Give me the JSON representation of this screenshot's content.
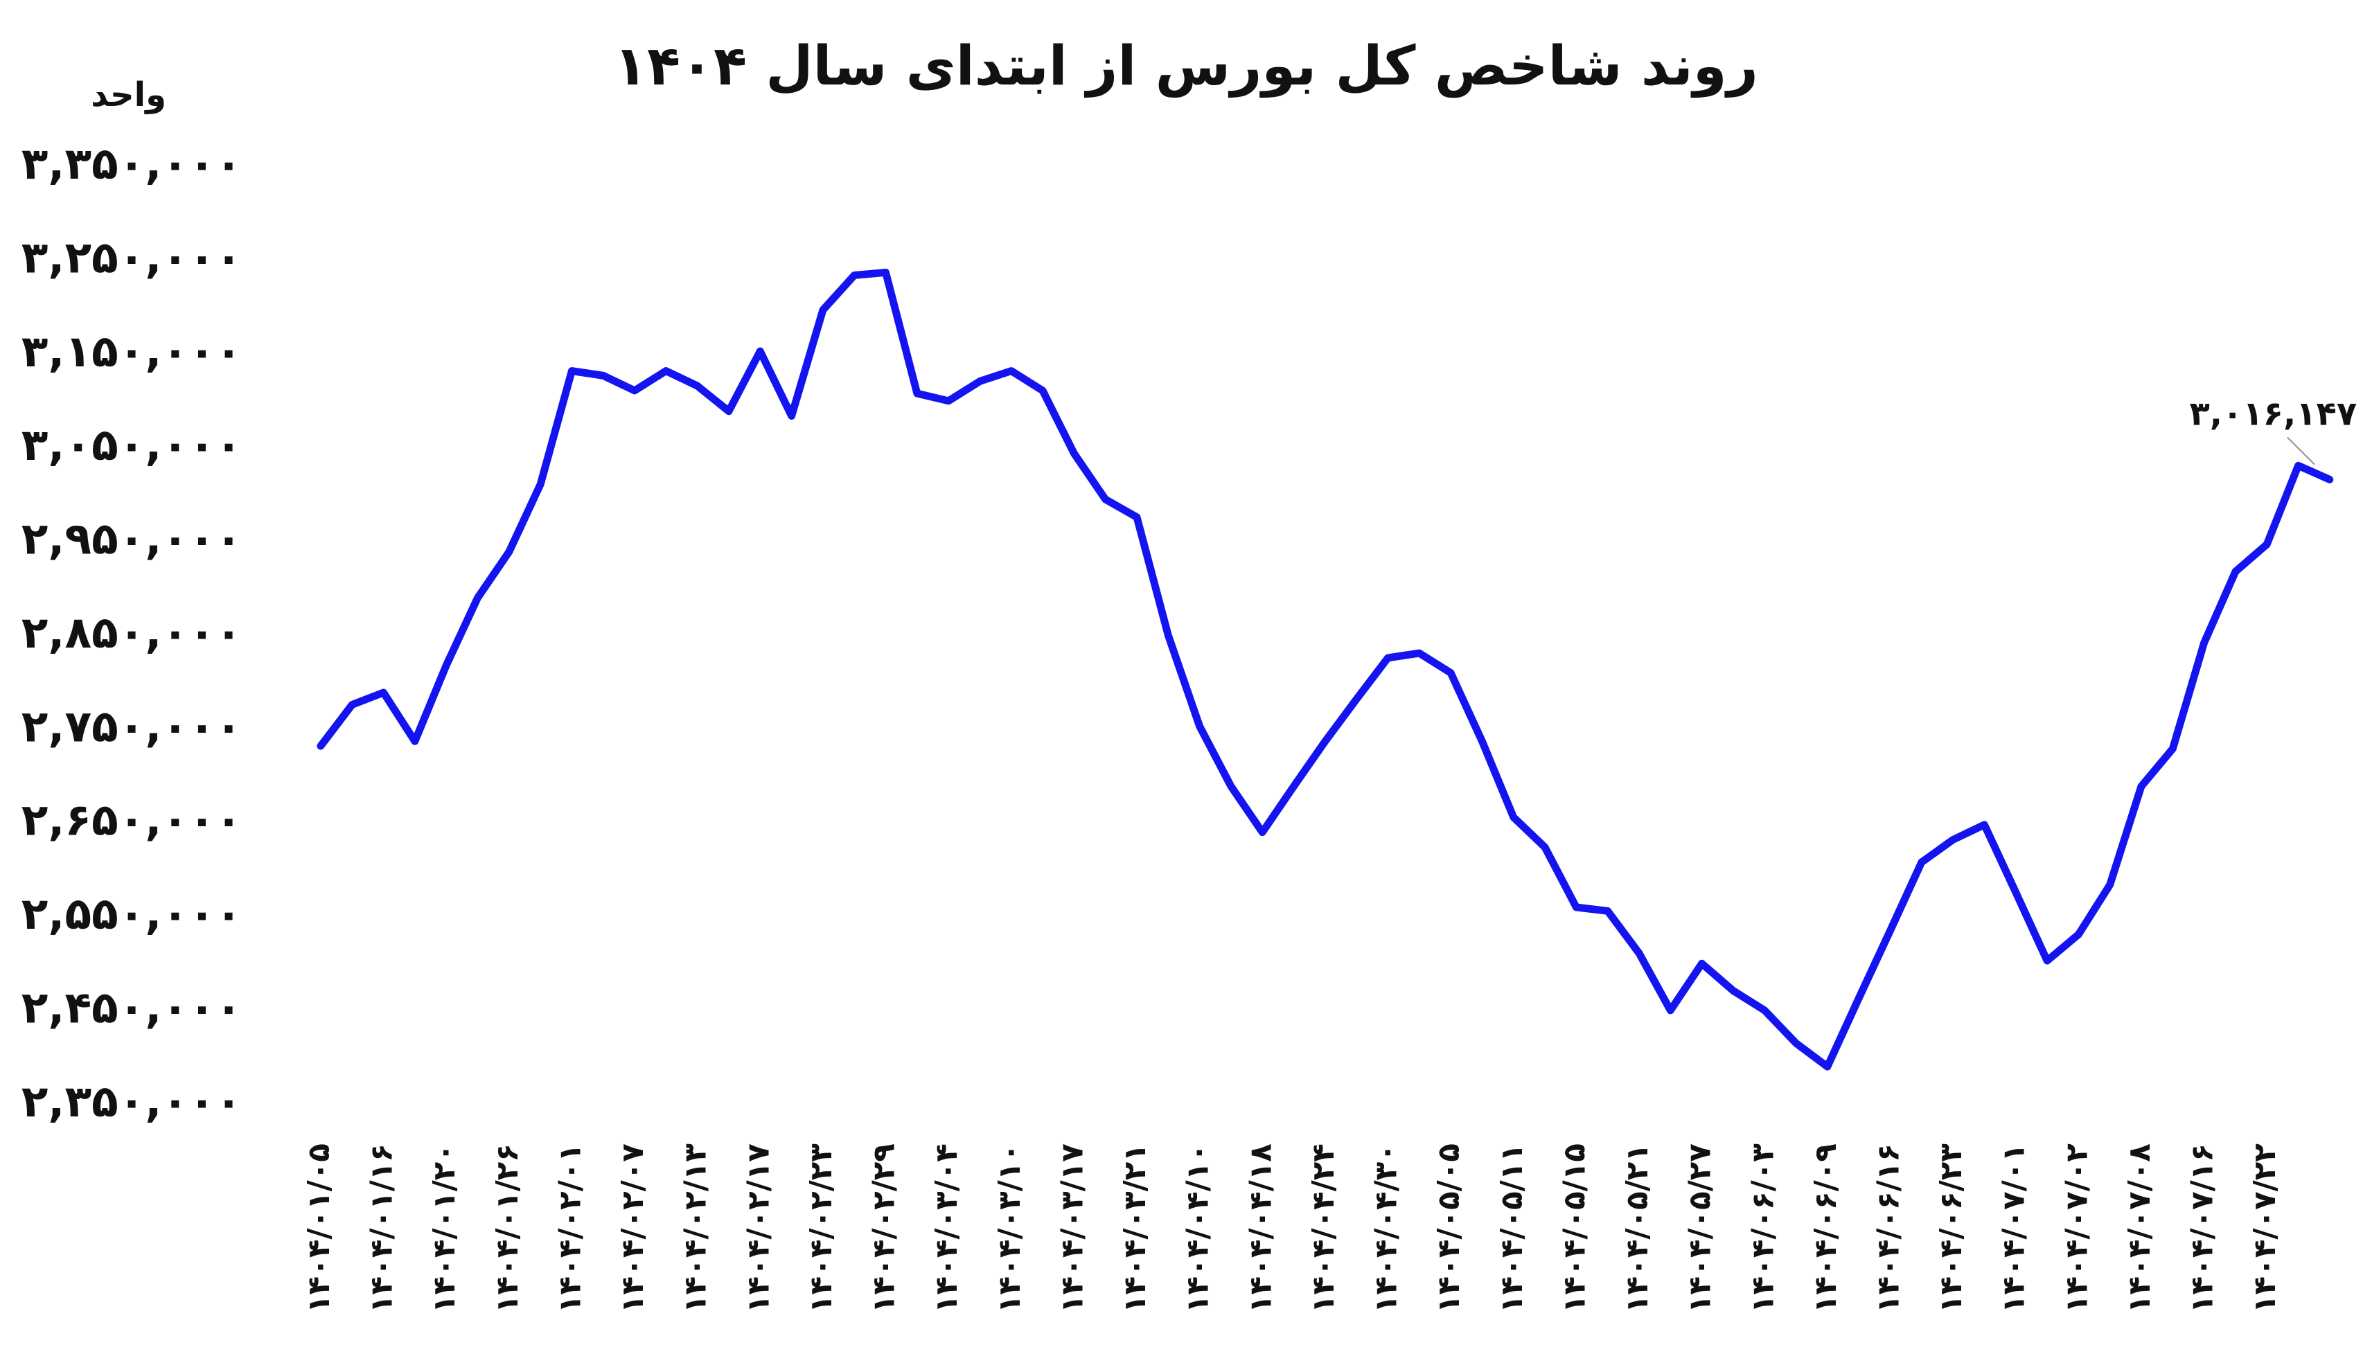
{
  "chart_data": {
    "type": "line",
    "title": "روند شاخص کل بورس از ابتدای سال ۱۴۰۴",
    "y_label": "واحد",
    "categories": [
      "۱۴۰۴/۰۱/۰۵",
      null,
      "۱۴۰۴/۰۱/۱۶",
      null,
      "۱۴۰۴/۰۱/۲۰",
      null,
      "۱۴۰۴/۰۱/۲۶",
      null,
      "۱۴۰۴/۰۲/۰۱",
      null,
      "۱۴۰۴/۰۲/۰۷",
      null,
      "۱۴۰۴/۰۲/۱۳",
      null,
      "۱۴۰۴/۰۲/۱۷",
      null,
      "۱۴۰۴/۰۲/۲۳",
      null,
      "۱۴۰۴/۰۲/۲۹",
      null,
      "۱۴۰۴/۰۳/۰۴",
      null,
      "۱۴۰۴/۰۳/۱۰",
      null,
      "۱۴۰۴/۰۳/۱۷",
      null,
      "۱۴۰۴/۰۳/۲۱",
      null,
      "۱۴۰۴/۰۴/۱۰",
      null,
      "۱۴۰۴/۰۴/۱۸",
      null,
      "۱۴۰۴/۰۴/۲۴",
      null,
      "۱۴۰۴/۰۴/۳۰",
      null,
      "۱۴۰۴/۰۵/۰۵",
      null,
      "۱۴۰۴/۰۵/۱۱",
      null,
      "۱۴۰۴/۰۵/۱۵",
      null,
      "۱۴۰۴/۰۵/۲۱",
      null,
      "۱۴۰۴/۰۵/۲۷",
      null,
      "۱۴۰۴/۰۶/۰۳",
      null,
      "۱۴۰۴/۰۶/۰۹",
      null,
      "۱۴۰۴/۰۶/۱۶",
      null,
      "۱۴۰۴/۰۶/۲۳",
      null,
      "۱۴۰۴/۰۷/۰۱",
      null,
      "۱۴۰۴/۰۷/۰۲",
      null,
      "۱۴۰۴/۰۷/۰۸",
      null,
      "۱۴۰۴/۰۷/۱۶",
      null,
      "۱۴۰۴/۰۷/۲۲",
      null,
      null
    ],
    "series": [
      {
        "color": "#1414f0",
        "values": [
          2732000,
          2776000,
          2789000,
          2737000,
          2818000,
          2890000,
          2939000,
          3011000,
          3132000,
          3127000,
          3111000,
          3132000,
          3116000,
          3089000,
          3153000,
          3084000,
          3197000,
          3234000,
          3237000,
          3108000,
          3100000,
          3121000,
          3132000,
          3111000,
          3044000,
          2995000,
          2976000,
          2850000,
          2753000,
          2689000,
          2640000,
          2689000,
          2737000,
          2782000,
          2826000,
          2831000,
          2810000,
          2737000,
          2656000,
          2624000,
          2560000,
          2556000,
          2511000,
          2450000,
          2500000,
          2471000,
          2450000,
          2415000,
          2390000,
          2463000,
          2535000,
          2608000,
          2632000,
          2648000,
          2576000,
          2503000,
          2531000,
          2584000,
          2689000,
          2729000,
          2842000,
          2918000,
          2947000,
          3031000,
          3016147
        ],
        "value_labels": [
          null,
          null,
          null,
          null,
          null,
          null,
          null,
          null,
          null,
          null,
          null,
          null,
          null,
          null,
          null,
          null,
          null,
          null,
          null,
          null,
          null,
          null,
          null,
          null,
          null,
          null,
          null,
          null,
          null,
          null,
          null,
          null,
          null,
          null,
          null,
          null,
          null,
          null,
          null,
          null,
          null,
          null,
          null,
          null,
          null,
          null,
          null,
          null,
          null,
          null,
          null,
          null,
          null,
          null,
          null,
          null,
          null,
          null,
          null,
          null,
          null,
          null,
          null,
          null,
          "۳,۰۱۶,۱۴۷"
        ]
      }
    ],
    "ylim": [
      2350000,
      3350000
    ],
    "yticks": [
      {
        "value": 2350000,
        "label": "۲,۳۵۰,۰۰۰"
      },
      {
        "value": 2450000,
        "label": "۲,۴۵۰,۰۰۰"
      },
      {
        "value": 2550000,
        "label": "۲,۵۵۰,۰۰۰"
      },
      {
        "value": 2650000,
        "label": "۲,۶۵۰,۰۰۰"
      },
      {
        "value": 2750000,
        "label": "۲,۷۵۰,۰۰۰"
      },
      {
        "value": 2850000,
        "label": "۲,۸۵۰,۰۰۰"
      },
      {
        "value": 2950000,
        "label": "۲,۹۵۰,۰۰۰"
      },
      {
        "value": 3050000,
        "label": "۳,۰۵۰,۰۰۰"
      },
      {
        "value": 3150000,
        "label": "۳,۱۵۰,۰۰۰"
      },
      {
        "value": 3250000,
        "label": "۳,۲۵۰,۰۰۰"
      },
      {
        "value": 3350000,
        "label": "۳,۳۵۰,۰۰۰"
      }
    ],
    "grid": false
  }
}
